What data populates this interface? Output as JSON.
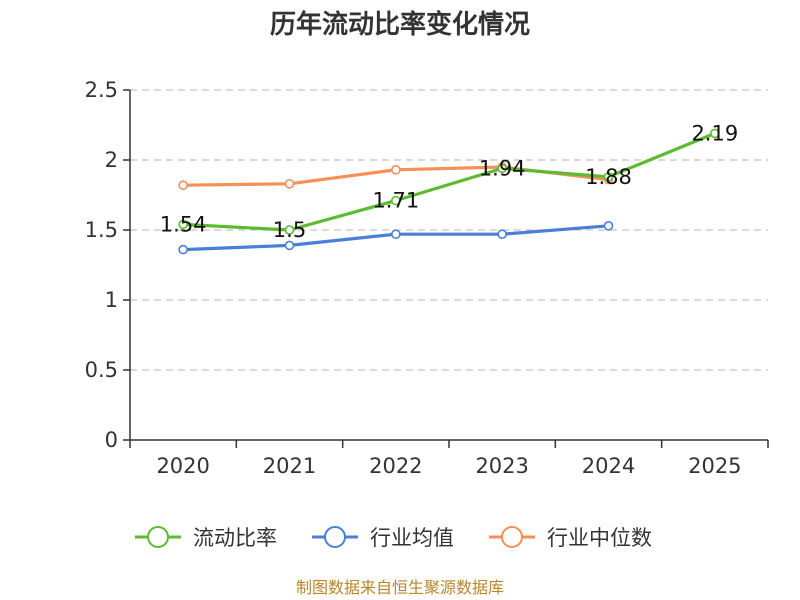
{
  "colors": {
    "series_1": "#5dbb2f",
    "series_2": "#4a7fd6",
    "series_3": "#f78f58",
    "footer": "#b8862b"
  },
  "footer": "制图数据来自恒生聚源数据库",
  "chart_data": {
    "type": "line",
    "title": "历年流动比率变化情况",
    "xlabel": "",
    "ylabel": "",
    "categories": [
      "2020",
      "2021",
      "2022",
      "2023",
      "2024",
      "2025"
    ],
    "ylim": [
      0,
      2.5
    ],
    "yticks": [
      "0",
      "0.5",
      "1",
      "1.5",
      "2",
      "2.5"
    ],
    "grid": true,
    "legend_position": "bottom",
    "series": [
      {
        "name": "流动比率",
        "color": "#5dbb2f",
        "values": [
          1.54,
          1.5,
          1.71,
          1.94,
          1.88,
          2.19
        ],
        "labels": [
          "1.54",
          "1.5",
          "1.71",
          "1.94",
          "1.88",
          "2.19"
        ]
      },
      {
        "name": "行业均值",
        "color": "#4a7fd6",
        "values": [
          1.36,
          1.39,
          1.47,
          1.47,
          1.53,
          null
        ]
      },
      {
        "name": "行业中位数",
        "color": "#f78f58",
        "values": [
          1.82,
          1.83,
          1.93,
          1.95,
          1.86,
          null
        ]
      }
    ]
  }
}
